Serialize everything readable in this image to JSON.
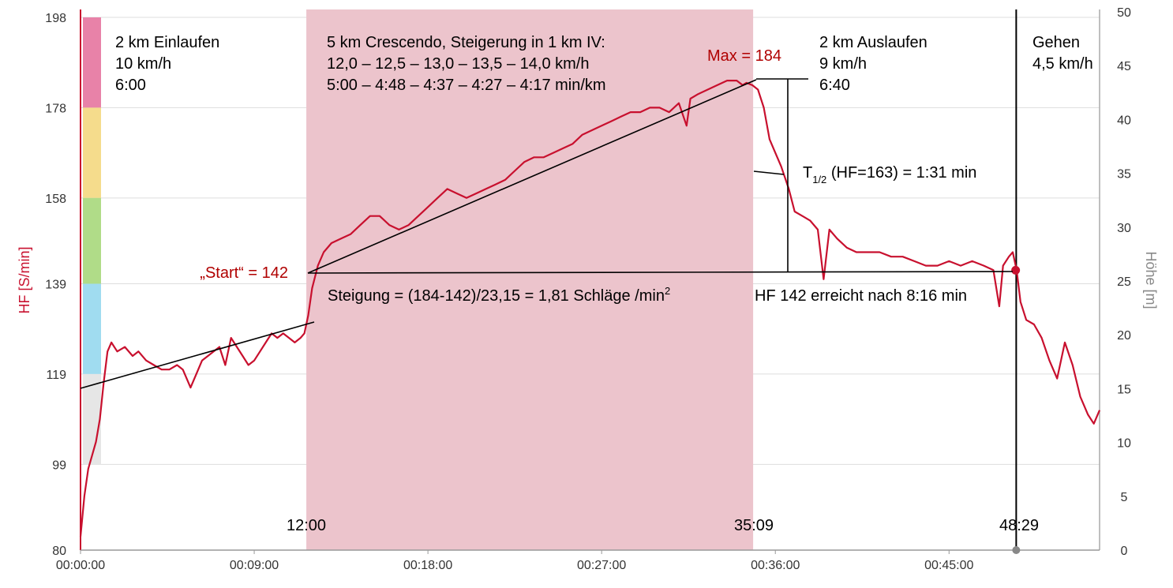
{
  "chart_data": {
    "type": "line",
    "colors": {
      "hr_line": "#c8102e",
      "crescendo_band": "#ecc4cc",
      "grid": "#dddddd",
      "annotation": "#000000",
      "annotation_red": "#b00000",
      "left_axis_title": "#c8102e",
      "right_axis_title": "#888888"
    },
    "left_axis": {
      "title": "HF [S/min]",
      "ylim": [
        80,
        198
      ],
      "ticks": [
        "198",
        "178",
        "158",
        "139",
        "119",
        "99",
        "80"
      ],
      "tick_values": [
        198,
        178,
        158,
        139,
        119,
        99,
        80
      ]
    },
    "right_axis": {
      "title": "Höhe [m]",
      "ylim": [
        0,
        50
      ],
      "ticks": [
        "50",
        "45",
        "40",
        "35",
        "30",
        "25",
        "20",
        "15",
        "10",
        "5",
        "0"
      ],
      "tick_values": [
        50,
        45,
        40,
        35,
        30,
        25,
        20,
        15,
        10,
        5,
        0
      ]
    },
    "x_axis": {
      "xlim_min": [
        0,
        52.8
      ],
      "ticks": [
        "00:00:00",
        "00:09:00",
        "00:18:00",
        "00:27:00",
        "00:36:00",
        "00:45:00"
      ],
      "tick_values_min": [
        0,
        9,
        18,
        27,
        36,
        45
      ]
    },
    "zones": [
      {
        "from": 178,
        "to": 198,
        "color": "#e882a8"
      },
      {
        "from": 158,
        "to": 178,
        "color": "#f5dc8c"
      },
      {
        "from": 139,
        "to": 158,
        "color": "#b0dc88"
      },
      {
        "from": 119,
        "to": 139,
        "color": "#a0dcf0"
      },
      {
        "from": 99,
        "to": 119,
        "color": "#e6e6e6"
      }
    ],
    "highlight_band_min": [
      11.7,
      34.85
    ],
    "phase_marker_min": 48.48,
    "series": [
      {
        "values": [
          [
            0,
            83
          ],
          [
            0.2,
            92
          ],
          [
            0.4,
            98
          ],
          [
            0.6,
            101
          ],
          [
            0.8,
            104
          ],
          [
            1.0,
            109
          ],
          [
            1.2,
            117
          ],
          [
            1.4,
            124
          ],
          [
            1.6,
            126
          ],
          [
            1.9,
            124
          ],
          [
            2.3,
            125
          ],
          [
            2.7,
            123
          ],
          [
            3.0,
            124
          ],
          [
            3.4,
            122
          ],
          [
            3.8,
            121
          ],
          [
            4.2,
            120
          ],
          [
            4.6,
            120
          ],
          [
            5.0,
            121
          ],
          [
            5.3,
            120
          ],
          [
            5.7,
            116
          ],
          [
            6.0,
            119
          ],
          [
            6.3,
            122
          ],
          [
            6.6,
            123
          ],
          [
            6.9,
            124
          ],
          [
            7.2,
            125
          ],
          [
            7.5,
            121
          ],
          [
            7.8,
            127
          ],
          [
            8.1,
            125
          ],
          [
            8.4,
            123
          ],
          [
            8.7,
            121
          ],
          [
            9.0,
            122
          ],
          [
            9.3,
            124
          ],
          [
            9.6,
            126
          ],
          [
            9.9,
            128
          ],
          [
            10.2,
            127
          ],
          [
            10.5,
            128
          ],
          [
            10.8,
            127
          ],
          [
            11.1,
            126
          ],
          [
            11.4,
            127
          ],
          [
            11.6,
            128
          ],
          [
            11.8,
            132
          ],
          [
            12.0,
            138
          ],
          [
            12.3,
            143
          ],
          [
            12.6,
            146
          ],
          [
            13.0,
            148
          ],
          [
            13.5,
            149
          ],
          [
            14.0,
            150
          ],
          [
            14.5,
            152
          ],
          [
            15.0,
            154
          ],
          [
            15.5,
            154
          ],
          [
            16.0,
            152
          ],
          [
            16.5,
            151
          ],
          [
            17.0,
            152
          ],
          [
            17.5,
            154
          ],
          [
            18.0,
            156
          ],
          [
            18.5,
            158
          ],
          [
            19.0,
            160
          ],
          [
            19.5,
            159
          ],
          [
            20.0,
            158
          ],
          [
            20.5,
            159
          ],
          [
            21.0,
            160
          ],
          [
            21.5,
            161
          ],
          [
            22.0,
            162
          ],
          [
            22.5,
            164
          ],
          [
            23.0,
            166
          ],
          [
            23.5,
            167
          ],
          [
            24.0,
            167
          ],
          [
            24.5,
            168
          ],
          [
            25.0,
            169
          ],
          [
            25.5,
            170
          ],
          [
            26.0,
            172
          ],
          [
            26.5,
            173
          ],
          [
            27.0,
            174
          ],
          [
            27.5,
            175
          ],
          [
            28.0,
            176
          ],
          [
            28.5,
            177
          ],
          [
            29.0,
            177
          ],
          [
            29.5,
            178
          ],
          [
            30.0,
            178
          ],
          [
            30.5,
            177
          ],
          [
            31.0,
            179
          ],
          [
            31.4,
            174
          ],
          [
            31.6,
            180
          ],
          [
            32.0,
            181
          ],
          [
            32.5,
            182
          ],
          [
            33.0,
            183
          ],
          [
            33.5,
            184
          ],
          [
            34.0,
            184
          ],
          [
            34.3,
            183
          ],
          [
            34.5,
            183.5
          ],
          [
            34.8,
            183
          ],
          [
            35.1,
            182
          ],
          [
            35.4,
            178
          ],
          [
            35.7,
            171
          ],
          [
            36.0,
            168
          ],
          [
            36.3,
            165
          ],
          [
            36.7,
            160
          ],
          [
            37.0,
            155
          ],
          [
            37.4,
            154
          ],
          [
            37.8,
            153
          ],
          [
            38.2,
            151
          ],
          [
            38.5,
            140
          ],
          [
            38.8,
            151
          ],
          [
            39.2,
            149
          ],
          [
            39.7,
            147
          ],
          [
            40.2,
            146
          ],
          [
            40.8,
            146
          ],
          [
            41.4,
            146
          ],
          [
            42.0,
            145
          ],
          [
            42.6,
            145
          ],
          [
            43.2,
            144
          ],
          [
            43.8,
            143
          ],
          [
            44.4,
            143
          ],
          [
            45.0,
            144
          ],
          [
            45.6,
            143
          ],
          [
            46.2,
            144
          ],
          [
            46.8,
            143
          ],
          [
            47.3,
            142
          ],
          [
            47.6,
            134
          ],
          [
            47.8,
            143
          ],
          [
            48.1,
            145
          ],
          [
            48.3,
            146
          ],
          [
            48.5,
            142
          ],
          [
            48.7,
            135
          ],
          [
            49.0,
            131
          ],
          [
            49.4,
            130
          ],
          [
            49.8,
            127
          ],
          [
            50.2,
            122
          ],
          [
            50.6,
            118
          ],
          [
            51.0,
            126
          ],
          [
            51.4,
            121
          ],
          [
            51.8,
            114
          ],
          [
            52.2,
            110
          ],
          [
            52.5,
            108
          ],
          [
            52.8,
            111
          ]
        ]
      }
    ],
    "marker_point": [
      48.45,
      142
    ],
    "annotations": {
      "phase1": [
        "2 km Einlaufen",
        "10 km/h",
        "6:00"
      ],
      "phase2": [
        "5 km Crescendo, Steigerung in 1 km IV:",
        "12,0 – 12,5 – 13,0 – 13,5 – 14,0 km/h",
        "5:00 – 4:48 – 4:37 – 4:27 – 4:17 min/km"
      ],
      "phase3": [
        "2 km Auslaufen",
        "9 km/h",
        "6:40"
      ],
      "phase4": [
        "Gehen",
        "4,5 km/h"
      ],
      "max_label": "Max = 184",
      "start_label": "„Start“ = 142",
      "slope_label": "Steigung = (184-142)/23,15 = 1,81 Schläge /min",
      "slope_sup": "2",
      "t_half_t": "T",
      "t_half_sub": "1/2",
      "t_half_rest": " (HF=163) = 1:31 min",
      "hf142_label": "HF 142 erreicht nach 8:16 min",
      "time_1200": "12:00",
      "time_3509": "35:09",
      "time_4829": "48:29"
    }
  }
}
